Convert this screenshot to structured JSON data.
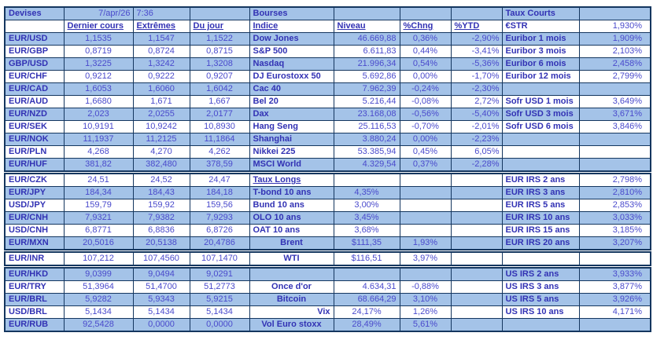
{
  "colors": {
    "row_fill": "#A4C3E8",
    "label_text": "#3232B4",
    "value_text": "#4A4ACC",
    "border": "#14365F",
    "background": "#FFFFFF"
  },
  "devises": {
    "title": "Devises",
    "date": "7/apr/26",
    "time": "7:36",
    "headers": [
      "Dernier cours",
      "Extrêmes",
      "Du jour"
    ],
    "rows": [
      [
        "EUR/USD",
        "1,1535",
        "1,1547",
        "1,1522"
      ],
      [
        "EUR/GBP",
        "0,8719",
        "0,8724",
        "0,8715"
      ],
      [
        "GBP/USD",
        "1,3225",
        "1,3242",
        "1,3208"
      ],
      [
        "EUR/CHF",
        "0,9212",
        "0,9222",
        "0,9207"
      ],
      [
        "EUR/CAD",
        "1,6053",
        "1,6060",
        "1,6042"
      ],
      [
        "EUR/AUD",
        "1,6680",
        "1,671",
        "1,667"
      ],
      [
        "EUR/NZD",
        "2,023",
        "2,0255",
        "2,0177"
      ],
      [
        "EUR/SEK",
        "10,9191",
        "10,9242",
        "10,8930"
      ],
      [
        "EUR/NOK",
        "11,1937",
        "11,2125",
        "11,1864"
      ],
      [
        "EUR/PLN",
        "4,268",
        "4,270",
        "4,262"
      ],
      [
        "EUR/HUF",
        "381,82",
        "382,480",
        "378,59"
      ],
      [
        "EUR/CZK",
        "24,51",
        "24,52",
        "24,47"
      ],
      [
        "EUR/JPY",
        "184,34",
        "184,43",
        "184,18"
      ],
      [
        "USD/JPY",
        "159,79",
        "159,92",
        "159,56"
      ],
      [
        "EUR/CNH",
        "7,9321",
        "7,9382",
        "7,9293"
      ],
      [
        "USD/CNH",
        "6,8771",
        "6,8836",
        "6,8726"
      ],
      [
        "EUR/MXN",
        "20,5016",
        "20,5138",
        "20,4786"
      ],
      [
        "EUR/INR",
        "107,212",
        "107,4560",
        "107,1470"
      ],
      [
        "EUR/HKD",
        "9,0399",
        "9,0494",
        "9,0291"
      ],
      [
        "EUR/TRY",
        "51,3964",
        "51,4700",
        "51,2773"
      ],
      [
        "EUR/BRL",
        "5,9282",
        "5,9343",
        "5,9215"
      ],
      [
        "USD/BRL",
        "5,1434",
        "5,1434",
        "5,1434"
      ],
      [
        "EUR/RUB",
        "92,5428",
        "0,0000",
        "0,0000"
      ]
    ]
  },
  "bourses": {
    "title": "Bourses",
    "headers": [
      "Indice",
      "Niveau",
      "%Chng",
      "%YTD"
    ],
    "rows": [
      {
        "label": "Dow Jones",
        "niveau": "46.669,88",
        "chng": "0,36%",
        "ytd": "-2,90%",
        "kind": "index"
      },
      {
        "label": "S&P 500",
        "niveau": "6.611,83",
        "chng": "0,44%",
        "ytd": "-3,41%",
        "kind": "index"
      },
      {
        "label": "Nasdaq",
        "niveau": "21.996,34",
        "chng": "0,54%",
        "ytd": "-5,36%",
        "kind": "index"
      },
      {
        "label": "DJ Eurostoxx 50",
        "niveau": "5.692,86",
        "chng": "0,00%",
        "ytd": "-1,70%",
        "kind": "index"
      },
      {
        "label": "Cac 40",
        "niveau": "7.962,39",
        "chng": "-0,24%",
        "ytd": "-2,30%",
        "kind": "index"
      },
      {
        "label": "Bel 20",
        "niveau": "5.216,44",
        "chng": "-0,08%",
        "ytd": "2,72%",
        "kind": "index"
      },
      {
        "label": "Dax",
        "niveau": "23.168,08",
        "chng": "-0,56%",
        "ytd": "-5,40%",
        "kind": "index"
      },
      {
        "label": "Hang Seng",
        "niveau": "25.116,53",
        "chng": "-0,70%",
        "ytd": "-2,01%",
        "kind": "index"
      },
      {
        "label": "Shanghai",
        "niveau": "3.880,24",
        "chng": "0,00%",
        "ytd": "-2,23%",
        "kind": "index"
      },
      {
        "label": "Nikkei 225",
        "niveau": "53.385,94",
        "chng": "0,45%",
        "ytd": "6,05%",
        "kind": "index"
      },
      {
        "label": "MSCI World",
        "niveau": "4.329,54",
        "chng": "0,37%",
        "ytd": "-2,28%",
        "kind": "index"
      },
      {
        "label": "Taux Longs",
        "niveau": "",
        "chng": "",
        "ytd": "",
        "kind": "subheader"
      },
      {
        "label": "T-bond 10 ans",
        "niveau": "4,35%",
        "chng": "",
        "ytd": "",
        "kind": "rate"
      },
      {
        "label": "Bund 10 ans",
        "niveau": "3,00%",
        "chng": "",
        "ytd": "",
        "kind": "rate"
      },
      {
        "label": "OLO 10 ans",
        "niveau": "3,45%",
        "chng": "",
        "ytd": "",
        "kind": "rate"
      },
      {
        "label": "OAT 10 ans",
        "niveau": "3,68%",
        "chng": "",
        "ytd": "",
        "kind": "rate"
      },
      {
        "label": "Brent",
        "niveau": "$111,35",
        "chng": "1,93%",
        "ytd": "",
        "kind": "commodity"
      },
      {
        "label": "WTI",
        "niveau": "$116,51",
        "chng": "3,97%",
        "ytd": "",
        "kind": "commodity"
      },
      {
        "label": "",
        "niveau": "",
        "chng": "",
        "ytd": "",
        "kind": "empty"
      },
      {
        "label": "Once d'or",
        "niveau": "4.634,31",
        "chng": "-0,88%",
        "ytd": "",
        "kind": "gold"
      },
      {
        "label": "Bitcoin",
        "niveau": "68.664,29",
        "chng": "3,10%",
        "ytd": "",
        "kind": "gold"
      },
      {
        "label": "Vix",
        "niveau": "24,17%",
        "chng": "1,26%",
        "ytd": "",
        "kind": "vix"
      },
      {
        "label": "Vol Euro stoxx",
        "niveau": "28,49%",
        "chng": "5,61%",
        "ytd": "",
        "kind": "commodity"
      }
    ]
  },
  "taux_courts": {
    "title": "Taux Courts",
    "estr": {
      "label": "€STR",
      "value": "1,930%"
    },
    "rows": [
      {
        "label": "Euribor 1 mois",
        "value": "1,909%"
      },
      {
        "label": "Euribor 3 mois",
        "value": "2,103%"
      },
      {
        "label": "Euribor 6 mois",
        "value": "2,458%"
      },
      {
        "label": "Euribor 12 mois",
        "value": "2,799%"
      },
      {
        "label": "",
        "value": ""
      },
      {
        "label": "Sofr USD 1 mois",
        "value": "3,649%"
      },
      {
        "label": "Sofr USD 3 mois",
        "value": "3,671%"
      },
      {
        "label": "Sofr USD 6 mois",
        "value": "3,846%"
      },
      {
        "label": "",
        "value": ""
      },
      {
        "label": "",
        "value": ""
      },
      {
        "label": "",
        "value": ""
      },
      {
        "label": "EUR IRS 2 ans",
        "value": "2,798%"
      },
      {
        "label": "EUR IRS 3 ans",
        "value": "2,810%"
      },
      {
        "label": "EUR IRS 5 ans",
        "value": "2,853%"
      },
      {
        "label": "EUR IRS 10 ans",
        "value": "3,033%"
      },
      {
        "label": "EUR IRS 15 ans",
        "value": "3,185%"
      },
      {
        "label": "EUR IRS 20 ans",
        "value": "3,207%"
      },
      {
        "label": "",
        "value": ""
      },
      {
        "label": "US IRS 2 ans",
        "value": "3,933%"
      },
      {
        "label": "US IRS 3 ans",
        "value": "3,877%"
      },
      {
        "label": "US IRS 5 ans",
        "value": "3,926%"
      },
      {
        "label": "US IRS 10 ans",
        "value": "4,171%"
      },
      {
        "label": "",
        "value": ""
      }
    ]
  }
}
